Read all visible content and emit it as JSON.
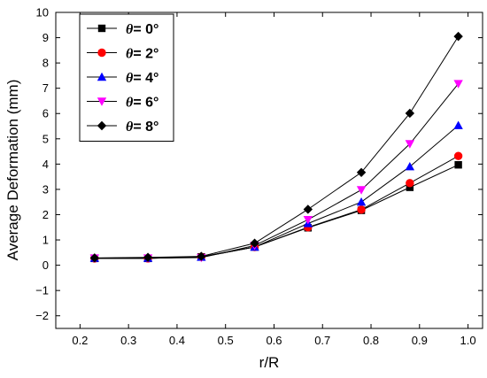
{
  "chart_data": {
    "type": "line",
    "xlabel": "r/R",
    "ylabel": "Average Deformation (mm)",
    "xlim": [
      0.15,
      1.03
    ],
    "ylim": [
      -2.5,
      10
    ],
    "xticks": [
      0.2,
      0.3,
      0.4,
      0.5,
      0.6,
      0.7,
      0.8,
      0.9,
      1.0
    ],
    "xtick_labels": [
      "0.2",
      "0.3",
      "0.4",
      "0.5",
      "0.6",
      "0.7",
      "0.8",
      "0.9",
      "1.0"
    ],
    "yticks": [
      -2,
      -1,
      0,
      1,
      2,
      3,
      4,
      5,
      6,
      7,
      8,
      9,
      10
    ],
    "ytick_labels": [
      "−2",
      "−1",
      "0",
      "1",
      "2",
      "3",
      "4",
      "5",
      "6",
      "7",
      "8",
      "9",
      "10"
    ],
    "legend_position": "top-left",
    "grid": false,
    "x": [
      0.23,
      0.34,
      0.45,
      0.56,
      0.67,
      0.78,
      0.88,
      0.98
    ],
    "series": [
      {
        "name": "= 0°",
        "symbol": "θ",
        "marker": "square",
        "color": "#000000",
        "values": [
          0.27,
          0.27,
          0.33,
          0.72,
          1.48,
          2.17,
          3.08,
          3.97
        ]
      },
      {
        "name": "= 2°",
        "symbol": "θ",
        "marker": "circle",
        "color": "#ff0000",
        "values": [
          0.27,
          0.27,
          0.33,
          0.72,
          1.5,
          2.2,
          3.25,
          4.32
        ]
      },
      {
        "name": "= 4°",
        "symbol": "θ",
        "marker": "triangle-up",
        "color": "#0000ff",
        "values": [
          0.28,
          0.28,
          0.32,
          0.72,
          1.65,
          2.5,
          3.9,
          5.53
        ]
      },
      {
        "name": "= 6°",
        "symbol": "θ",
        "marker": "triangle-down",
        "color": "#ff00ff",
        "values": [
          0.28,
          0.28,
          0.3,
          0.78,
          1.8,
          2.98,
          4.8,
          7.18
        ]
      },
      {
        "name": "= 8°",
        "symbol": "θ",
        "marker": "diamond",
        "color": "#000000",
        "values": [
          0.29,
          0.31,
          0.35,
          0.87,
          2.21,
          3.67,
          6.01,
          9.05
        ]
      }
    ]
  }
}
